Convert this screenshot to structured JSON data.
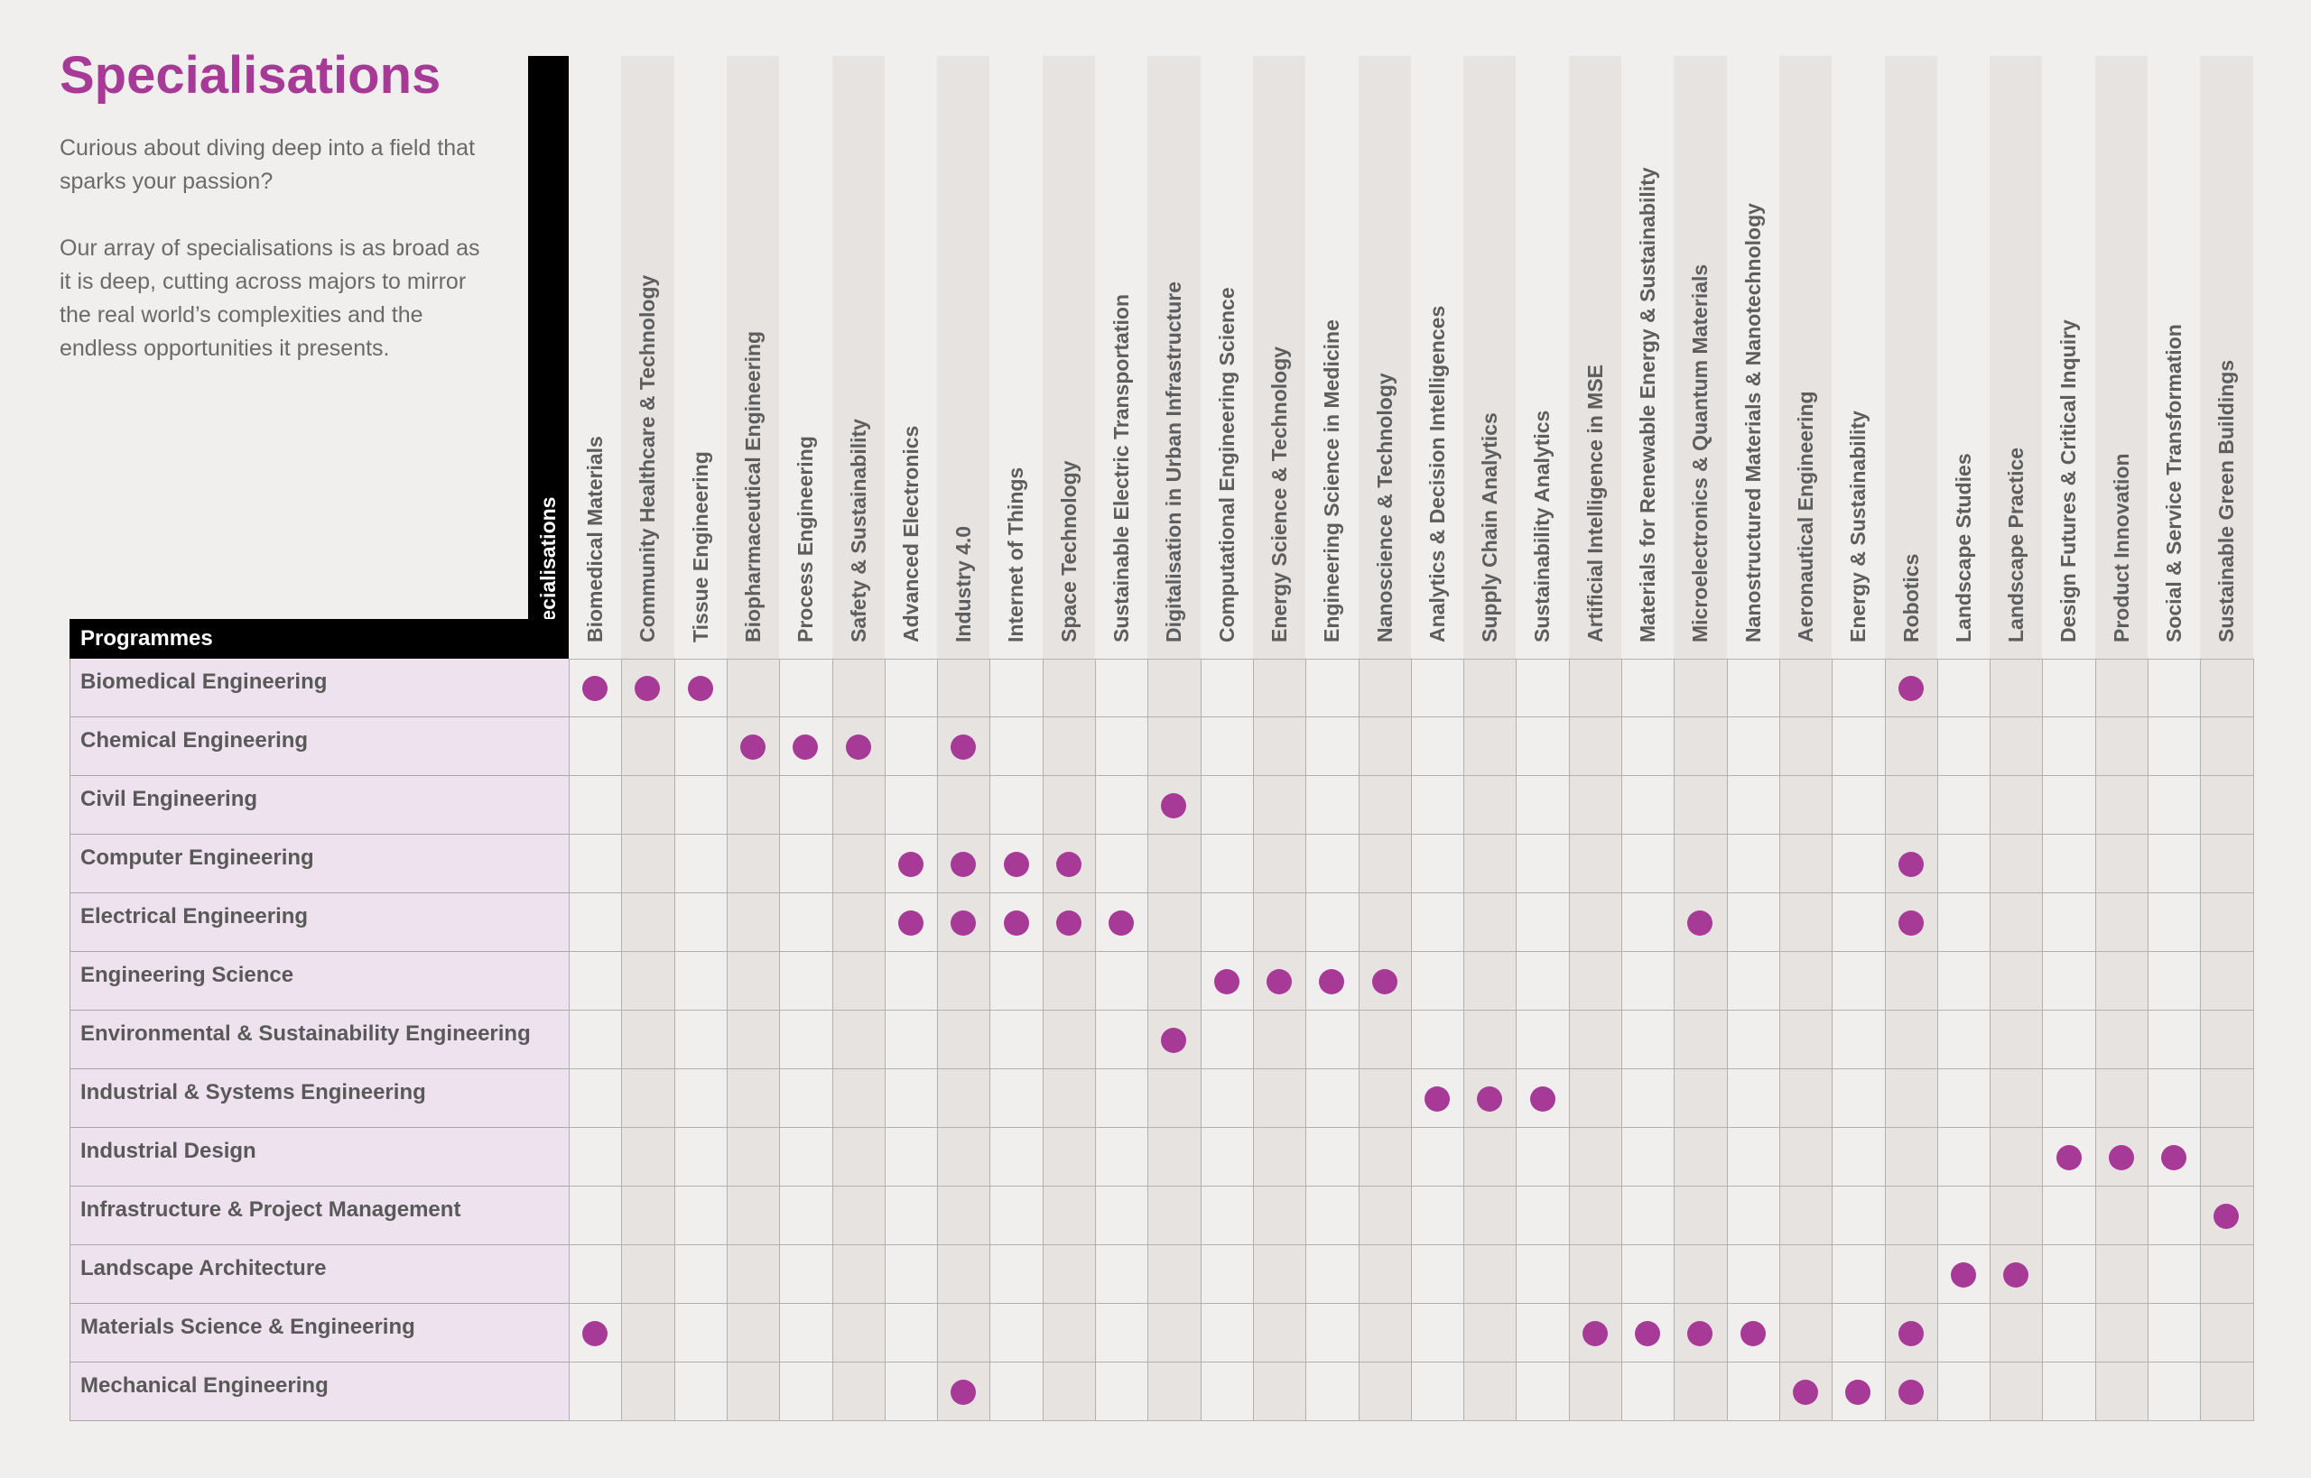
{
  "title": "Specialisations",
  "intro": [
    "Curious about diving deep into a field that sparks your passion?",
    "Our array of specialisations is as broad as it is deep, cutting across majors to mirror the real world’s complexities and the endless opportunities it presents."
  ],
  "table": {
    "programmes_header": "Programmes",
    "specialisations_header": "Specialisations",
    "dot_color": "#a73a97",
    "specialisations": [
      "Biomedical Materials",
      "Community Healthcare & Technology",
      "Tissue Engineering",
      "Biopharmaceutical Engineering",
      "Process Engineering",
      "Safety & Sustainability",
      "Advanced Electronics",
      "Industry 4.0",
      "Internet of Things",
      "Space Technology",
      "Sustainable Electric Transportation",
      "Digitalisation in Urban Infrastructure",
      "Computational Engineering Science",
      "Energy Science & Technology",
      "Engineering Science in Medicine",
      "Nanoscience & Technology",
      "Analytics & Decision Intelligences",
      "Supply Chain Analytics",
      "Sustainability Analytics",
      "Artificial Intelligence in MSE",
      "Materials for Renewable Energy & Sustainability",
      "Microelectronics & Quantum Materials",
      "Nanostructured Materials & Nanotechnology",
      "Aeronautical Engineering",
      "Energy & Sustainability",
      "Robotics",
      "Landscape Studies",
      "Landscape Practice",
      "Design Futures & Critical Inquiry",
      "Product Innovation",
      "Social & Service Transformation",
      "Sustainable Green Buildings"
    ],
    "programmes": [
      {
        "name": "Biomedical Engineering",
        "specialisations": [
          0,
          1,
          2,
          25
        ]
      },
      {
        "name": "Chemical Engineering",
        "specialisations": [
          3,
          4,
          5,
          7
        ]
      },
      {
        "name": "Civil Engineering",
        "specialisations": [
          11
        ]
      },
      {
        "name": "Computer Engineering",
        "specialisations": [
          6,
          7,
          8,
          9,
          25
        ]
      },
      {
        "name": "Electrical Engineering",
        "specialisations": [
          6,
          7,
          8,
          9,
          10,
          21,
          25
        ]
      },
      {
        "name": "Engineering Science",
        "specialisations": [
          12,
          13,
          14,
          15
        ]
      },
      {
        "name": "Environmental & Sustainability Engineering",
        "specialisations": [
          11
        ]
      },
      {
        "name": "Industrial & Systems Engineering",
        "specialisations": [
          16,
          17,
          18
        ]
      },
      {
        "name": "Industrial Design",
        "specialisations": [
          28,
          29,
          30
        ]
      },
      {
        "name": "Infrastructure & Project Management",
        "specialisations": [
          31
        ]
      },
      {
        "name": "Landscape Architecture",
        "specialisations": [
          26,
          27
        ]
      },
      {
        "name": "Materials Science & Engineering",
        "specialisations": [
          0,
          19,
          20,
          21,
          22,
          25
        ]
      },
      {
        "name": "Mechanical Engineering",
        "specialisations": [
          7,
          23,
          24,
          25
        ]
      }
    ]
  }
}
